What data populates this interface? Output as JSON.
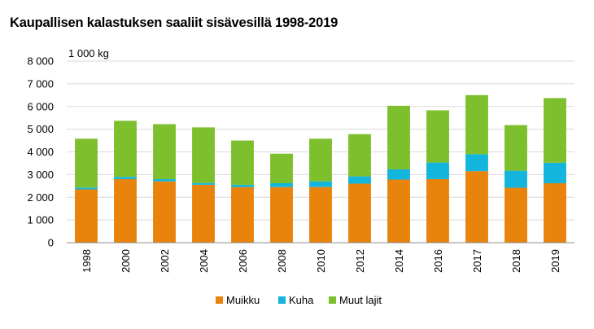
{
  "chart_data": {
    "type": "bar",
    "stacked": true,
    "title": "Kaupallisen kalastuksen saaliit sisävesillä 1998-2019",
    "unit_label": "1 000 kg",
    "xlabel": "",
    "ylabel": "",
    "ylim": [
      0,
      8000
    ],
    "yticks": [
      0,
      1000,
      2000,
      3000,
      4000,
      5000,
      6000,
      7000,
      8000
    ],
    "ytick_labels": [
      "0",
      "1 000",
      "2 000",
      "3 000",
      "4 000",
      "5 000",
      "6 000",
      "7 000",
      "8 000"
    ],
    "grid": true,
    "legend_position": "bottom",
    "categories": [
      "1998",
      "2000",
      "2002",
      "2004",
      "2006",
      "2008",
      "2010",
      "2012",
      "2014",
      "2016",
      "2017",
      "2018",
      "2019"
    ],
    "series": [
      {
        "name": "Muikku",
        "color": "#E8830C",
        "values": [
          2350,
          2800,
          2700,
          2550,
          2450,
          2450,
          2450,
          2600,
          2780,
          2800,
          3150,
          2420,
          2620
        ]
      },
      {
        "name": "Kuha",
        "color": "#13B5DD",
        "values": [
          80,
          100,
          100,
          80,
          100,
          170,
          250,
          320,
          450,
          730,
          750,
          750,
          900
        ]
      },
      {
        "name": "Muut lajit",
        "color": "#7DBF2C",
        "values": [
          2150,
          2470,
          2420,
          2450,
          1950,
          1300,
          1880,
          1860,
          2800,
          2300,
          2600,
          2010,
          2850
        ]
      }
    ]
  }
}
